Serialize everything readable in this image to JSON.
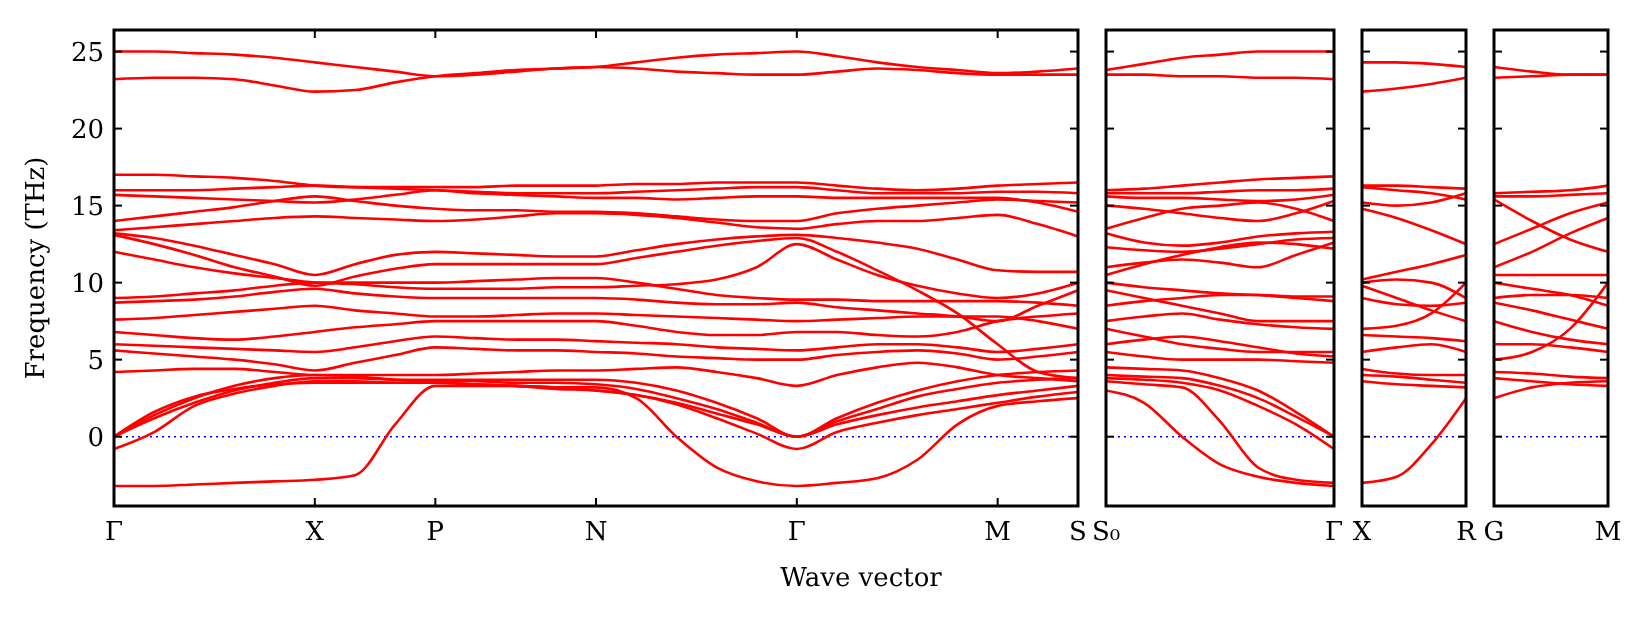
{
  "chart_data": [
    {
      "type": "line",
      "xlabel": "Wave vector",
      "ylabel": "Frequency (THz)",
      "categories": [
        "Γ",
        null,
        null,
        null,
        null,
        "X",
        null,
        null,
        "P",
        null,
        null,
        null,
        "N",
        null,
        null,
        null,
        null,
        "Γ",
        null,
        null,
        null,
        null,
        "M",
        null,
        "S"
      ],
      "ylim": [
        -4.5,
        26.4
      ],
      "yticks": [
        0,
        5,
        10,
        15,
        20,
        25
      ],
      "ref_lines": [
        {
          "axis": "y",
          "value": 0,
          "color": "#0000ff",
          "line_style": "dotted"
        }
      ],
      "line_style": "solid",
      "marker": "none",
      "series": [
        {
          "color": "#ff0000",
          "values": [
            25,
            25,
            24.9,
            24.8,
            24.6,
            24.3,
            24,
            23.7,
            23.4,
            23.5,
            23.7,
            23.9,
            24,
            24.3,
            24.6,
            24.8,
            24.9,
            25,
            24.7,
            24.3,
            24,
            23.8,
            23.6,
            23.7,
            23.9
          ]
        },
        {
          "color": "#ff0000",
          "values": [
            23.2,
            23.3,
            23.3,
            23.2,
            22.8,
            22.4,
            22.5,
            23,
            23.4,
            23.6,
            23.8,
            23.9,
            24,
            23.9,
            23.7,
            23.6,
            23.5,
            23.5,
            23.7,
            23.9,
            23.8,
            23.6,
            23.5,
            23.5,
            23.5
          ]
        },
        {
          "color": "#ff0000",
          "values": [
            17,
            17,
            16.9,
            16.8,
            16.6,
            16.3,
            16.2,
            16.2,
            16.2,
            16.2,
            16.3,
            16.3,
            16.3,
            16.4,
            16.4,
            16.5,
            16.5,
            16.5,
            16.3,
            16.1,
            16,
            16.1,
            16.3,
            16.4,
            16.5
          ]
        },
        {
          "color": "#ff0000",
          "values": [
            16,
            16,
            16,
            16.1,
            16.2,
            16.3,
            16.2,
            16.1,
            16,
            15.9,
            15.8,
            15.8,
            15.8,
            15.9,
            16,
            16.1,
            16.2,
            16.2,
            16,
            15.8,
            15.8,
            15.8,
            15.9,
            15.9,
            15.8
          ]
        },
        {
          "color": "#ff0000",
          "values": [
            15.7,
            15.6,
            15.5,
            15.4,
            15.3,
            15.2,
            15.4,
            15.7,
            16,
            15.8,
            15.7,
            15.6,
            15.5,
            15.5,
            15.4,
            15.5,
            15.6,
            15.6,
            15.5,
            15.5,
            15.5,
            15.5,
            15.5,
            15.2,
            14.6
          ]
        },
        {
          "color": "#ff0000",
          "values": [
            14,
            14.3,
            14.6,
            14.9,
            15.3,
            15.6,
            15.3,
            15,
            14.8,
            14.7,
            14.7,
            14.6,
            14.6,
            14.5,
            14.3,
            14.1,
            14,
            14,
            14.5,
            14.8,
            15,
            15.2,
            15.4,
            15.3,
            15.2
          ]
        },
        {
          "color": "#ff0000",
          "values": [
            13.4,
            13.6,
            13.8,
            14,
            14.2,
            14.3,
            14.2,
            14.1,
            14,
            14.1,
            14.3,
            14.5,
            14.5,
            14.4,
            14.2,
            13.9,
            13.6,
            13.5,
            13.8,
            14,
            14,
            14.2,
            14.4,
            13.8,
            13
          ]
        },
        {
          "color": "#ff0000",
          "values": [
            13.2,
            12.9,
            12.4,
            11.8,
            11.2,
            10.5,
            11.2,
            11.8,
            12,
            11.9,
            11.8,
            11.7,
            11.7,
            12.1,
            12.5,
            12.8,
            13,
            13.1,
            12.9,
            12.6,
            12.2,
            11.5,
            10.8,
            10.7,
            10.7
          ]
        },
        {
          "color": "#ff0000",
          "values": [
            13.1,
            12.5,
            11.8,
            11,
            10.4,
            9.8,
            10.4,
            10.9,
            11.2,
            11.2,
            11.2,
            11.2,
            11.2,
            11.6,
            12,
            12.4,
            12.7,
            12.9,
            12,
            10.8,
            9.5,
            8,
            6,
            4.2,
            3.8
          ]
        },
        {
          "color": "#ff0000",
          "values": [
            12,
            11.5,
            11,
            10.6,
            10.3,
            10,
            9.9,
            9.7,
            9.6,
            9.6,
            9.6,
            9.7,
            9.7,
            9.8,
            9.9,
            10.2,
            11,
            12.5,
            11.5,
            10.5,
            9.8,
            9.3,
            9,
            9.3,
            10
          ]
        },
        {
          "color": "#ff0000",
          "values": [
            9,
            9.1,
            9.3,
            9.5,
            9.8,
            10,
            10,
            10,
            10,
            10.1,
            10.2,
            10.3,
            10.3,
            10,
            9.6,
            9.2,
            9,
            8.9,
            8.9,
            8.8,
            8.8,
            8.8,
            8.8,
            8.7,
            8.5
          ]
        },
        {
          "color": "#ff0000",
          "values": [
            8.7,
            8.8,
            8.9,
            9.1,
            9.4,
            9.6,
            9.3,
            9.1,
            9,
            9,
            9,
            9,
            9,
            8.9,
            8.7,
            8.6,
            8.6,
            8.7,
            8.4,
            8.2,
            8,
            7.8,
            7.5,
            8.5,
            9.5
          ]
        },
        {
          "color": "#ff0000",
          "values": [
            7.6,
            7.7,
            7.9,
            8.1,
            8.3,
            8.5,
            8.2,
            8,
            7.8,
            7.8,
            7.9,
            8,
            8,
            7.9,
            7.8,
            7.7,
            7.6,
            7.5,
            7.6,
            7.7,
            7.8,
            7.8,
            7.8,
            7.5,
            7
          ]
        },
        {
          "color": "#ff0000",
          "values": [
            6.8,
            6.6,
            6.4,
            6.3,
            6.5,
            6.8,
            7.1,
            7.3,
            7.5,
            7.5,
            7.5,
            7.5,
            7.5,
            7.2,
            6.8,
            6.6,
            6.6,
            6.8,
            6.8,
            6.6,
            6.5,
            6.8,
            7.5,
            7.8,
            8
          ]
        },
        {
          "color": "#ff0000",
          "values": [
            6,
            5.9,
            5.8,
            5.7,
            5.6,
            5.5,
            5.8,
            6.2,
            6.5,
            6.4,
            6.3,
            6.3,
            6.2,
            6.1,
            6,
            5.8,
            5.7,
            5.6,
            5.8,
            6,
            6,
            5.8,
            5.5,
            5.7,
            6
          ]
        },
        {
          "color": "#ff0000",
          "values": [
            5.6,
            5.4,
            5.2,
            5,
            4.7,
            4.3,
            4.8,
            5.3,
            5.8,
            5.7,
            5.6,
            5.6,
            5.5,
            5.4,
            5.2,
            5.1,
            5,
            5,
            5.3,
            5.5,
            5.6,
            5.4,
            5,
            5.2,
            5.5
          ]
        },
        {
          "color": "#ff0000",
          "values": [
            4.2,
            4.3,
            4.4,
            4.4,
            4.2,
            4,
            4,
            4,
            4,
            4.1,
            4.2,
            4.3,
            4.3,
            4.4,
            4.5,
            4.2,
            3.8,
            3.3,
            4,
            4.5,
            4.8,
            4.5,
            4,
            3.8,
            3.6
          ]
        },
        {
          "color": "#ff0000",
          "values": [
            0,
            1.2,
            2.2,
            3,
            3.5,
            3.8,
            3.8,
            3.7,
            3.7,
            3.7,
            3.7,
            3.7,
            3.7,
            3.5,
            3,
            2.2,
            1.2,
            0,
            1.2,
            2.2,
            3,
            3.6,
            4,
            4.2,
            4.3
          ]
        },
        {
          "color": "#ff0000",
          "values": [
            0,
            1.4,
            2.5,
            3.3,
            3.8,
            4,
            3.9,
            3.7,
            3.6,
            3.6,
            3.5,
            3.5,
            3.4,
            3.1,
            2.5,
            1.8,
            0.9,
            0,
            1,
            1.8,
            2.6,
            3.1,
            3.5,
            3.7,
            3.8
          ]
        },
        {
          "color": "#ff0000",
          "values": [
            0,
            1.6,
            2.6,
            3.1,
            3.4,
            3.5,
            3.5,
            3.5,
            3.5,
            3.4,
            3.3,
            3.2,
            3,
            2.7,
            2.2,
            1.5,
            0.8,
            0,
            0.8,
            1.4,
            1.9,
            2.3,
            2.7,
            3,
            3.3
          ]
        },
        {
          "color": "#ff0000",
          "values": [
            -0.8,
            0.3,
            2,
            2.8,
            3.3,
            3.6,
            3.6,
            3.5,
            3.5,
            3.4,
            3.3,
            3.1,
            3,
            2.7,
            2.1,
            1.2,
            0.2,
            -0.8,
            0.3,
            0.9,
            1.4,
            1.8,
            2.2,
            2.6,
            2.9
          ]
        },
        {
          "color": "#ff0000",
          "values": [
            -3.2,
            -3.2,
            -3.1,
            -3,
            -2.9,
            -2.8,
            -2.5,
            0.8,
            3.3,
            3.3,
            3.3,
            3.2,
            3.2,
            2.5,
            0,
            -2,
            -2.9,
            -3.2,
            -3,
            -2.7,
            -1.5,
            0.8,
            2,
            2.3,
            2.5
          ]
        }
      ]
    },
    {
      "type": "line",
      "categories": [
        "S₀",
        null,
        null,
        null,
        null,
        null,
        "Γ"
      ],
      "ylim": [
        -4.5,
        26.4
      ],
      "yticks": [
        0,
        5,
        10,
        15,
        20,
        25
      ],
      "tick_labels": "x",
      "ref_lines": [
        {
          "axis": "y",
          "value": 0,
          "color": "#0000ff",
          "line_style": "dotted"
        }
      ],
      "line_style": "solid",
      "marker": "none",
      "series": [
        {
          "color": "#ff0000",
          "values": [
            23.8,
            24.2,
            24.6,
            24.8,
            25,
            25,
            25
          ]
        },
        {
          "color": "#ff0000",
          "values": [
            23.5,
            23.5,
            23.4,
            23.4,
            23.3,
            23.3,
            23.2
          ]
        },
        {
          "color": "#ff0000",
          "values": [
            16,
            16.1,
            16.3,
            16.5,
            16.7,
            16.8,
            16.9
          ]
        },
        {
          "color": "#ff0000",
          "values": [
            15.8,
            15.8,
            15.8,
            15.9,
            16,
            16,
            16.1
          ]
        },
        {
          "color": "#ff0000",
          "values": [
            15.6,
            15.5,
            15.5,
            15.4,
            15.3,
            15.4,
            15.7
          ]
        },
        {
          "color": "#ff0000",
          "values": [
            15,
            14.8,
            14.5,
            14.2,
            14,
            14.5,
            15.3
          ]
        },
        {
          "color": "#ff0000",
          "values": [
            13.5,
            14.2,
            14.8,
            15,
            15.2,
            14.8,
            14
          ]
        },
        {
          "color": "#ff0000",
          "values": [
            13.2,
            12.6,
            12.4,
            12.6,
            13,
            13.2,
            13.3
          ]
        },
        {
          "color": "#ff0000",
          "values": [
            12.3,
            12.1,
            12,
            12.2,
            12.5,
            12.8,
            12.9
          ]
        },
        {
          "color": "#ff0000",
          "values": [
            11,
            11.3,
            11.5,
            11.3,
            11,
            11.8,
            12.6
          ]
        },
        {
          "color": "#ff0000",
          "values": [
            10.5,
            11.2,
            11.8,
            12.3,
            12.6,
            12.5,
            12.2
          ]
        },
        {
          "color": "#ff0000",
          "values": [
            10,
            9.7,
            9.5,
            9.3,
            9.2,
            9,
            8.8
          ]
        },
        {
          "color": "#ff0000",
          "values": [
            9.5,
            9,
            8.5,
            8,
            7.5,
            7.5,
            7.5
          ]
        },
        {
          "color": "#ff0000",
          "values": [
            8.5,
            8.8,
            9,
            9.2,
            9.2,
            9.1,
            9.1
          ]
        },
        {
          "color": "#ff0000",
          "values": [
            7.5,
            7.8,
            8,
            7.6,
            7.3,
            7.1,
            7
          ]
        },
        {
          "color": "#ff0000",
          "values": [
            7,
            6.5,
            6,
            5.7,
            5.5,
            5.5,
            5.5
          ]
        },
        {
          "color": "#ff0000",
          "values": [
            6,
            6.3,
            6.5,
            6.2,
            5.8,
            5.4,
            5.2
          ]
        },
        {
          "color": "#ff0000",
          "values": [
            5.5,
            5.2,
            5,
            5,
            5,
            4.9,
            4.8
          ]
        },
        {
          "color": "#ff0000",
          "values": [
            4.5,
            4.4,
            4.3,
            3.8,
            3,
            1.6,
            0
          ]
        },
        {
          "color": "#ff0000",
          "values": [
            4,
            3.9,
            3.8,
            3.3,
            2.5,
            1.3,
            0
          ]
        },
        {
          "color": "#ff0000",
          "values": [
            3.8,
            3.7,
            3.5,
            3,
            2,
            0.8,
            -0.8
          ]
        },
        {
          "color": "#ff0000",
          "values": [
            3,
            2.2,
            0,
            -1.8,
            -2.6,
            -3,
            -3.2
          ]
        },
        {
          "color": "#ff0000",
          "values": [
            3.6,
            3.4,
            3.2,
            1,
            -2,
            -2.8,
            -3
          ]
        }
      ]
    },
    {
      "type": "line",
      "categories": [
        "X",
        null,
        null,
        "R"
      ],
      "ylim": [
        -4.5,
        26.4
      ],
      "yticks": [
        0,
        5,
        10,
        15,
        20,
        25
      ],
      "tick_labels": "x",
      "ref_lines": [
        {
          "axis": "y",
          "value": 0,
          "color": "#0000ff",
          "line_style": "dotted"
        }
      ],
      "line_style": "solid",
      "marker": "none",
      "series": [
        {
          "color": "#ff0000",
          "values": [
            24.3,
            24.3,
            24.2,
            24
          ]
        },
        {
          "color": "#ff0000",
          "values": [
            22.4,
            22.6,
            22.9,
            23.3
          ]
        },
        {
          "color": "#ff0000",
          "values": [
            16.3,
            16.3,
            16.2,
            16.1
          ]
        },
        {
          "color": "#ff0000",
          "values": [
            16.2,
            16,
            15.8,
            15.4
          ]
        },
        {
          "color": "#ff0000",
          "values": [
            15.2,
            15,
            15.2,
            15.8
          ]
        },
        {
          "color": "#ff0000",
          "values": [
            14.8,
            14.2,
            13.4,
            12.5
          ]
        },
        {
          "color": "#ff0000",
          "values": [
            10.2,
            10.7,
            11.2,
            11.8
          ]
        },
        {
          "color": "#ff0000",
          "values": [
            10,
            10.2,
            10,
            9
          ]
        },
        {
          "color": "#ff0000",
          "values": [
            9.8,
            9,
            8.2,
            7.5
          ]
        },
        {
          "color": "#ff0000",
          "values": [
            9,
            8.6,
            8.5,
            8.7
          ]
        },
        {
          "color": "#ff0000",
          "values": [
            7,
            7.2,
            8,
            10
          ]
        },
        {
          "color": "#ff0000",
          "values": [
            6.6,
            6.5,
            6.4,
            6.2
          ]
        },
        {
          "color": "#ff0000",
          "values": [
            5.5,
            5.8,
            6,
            5.5
          ]
        },
        {
          "color": "#ff0000",
          "values": [
            4.4,
            4.1,
            4,
            4
          ]
        },
        {
          "color": "#ff0000",
          "values": [
            4,
            3.9,
            3.7,
            3.5
          ]
        },
        {
          "color": "#ff0000",
          "values": [
            3.6,
            3.4,
            3.3,
            3.2
          ]
        },
        {
          "color": "#ff0000",
          "values": [
            -3,
            -2.6,
            -0.5,
            2.5
          ]
        }
      ]
    },
    {
      "type": "line",
      "categories": [
        "G",
        null,
        null,
        "M"
      ],
      "ylim": [
        -4.5,
        26.4
      ],
      "yticks": [
        0,
        5,
        10,
        15,
        20,
        25
      ],
      "tick_labels": "x",
      "ref_lines": [
        {
          "axis": "y",
          "value": 0,
          "color": "#0000ff",
          "line_style": "dotted"
        }
      ],
      "line_style": "solid",
      "marker": "none",
      "series": [
        {
          "color": "#ff0000",
          "values": [
            24,
            23.7,
            23.5,
            23.5
          ]
        },
        {
          "color": "#ff0000",
          "values": [
            23.3,
            23.4,
            23.5,
            23.5
          ]
        },
        {
          "color": "#ff0000",
          "values": [
            15.8,
            15.9,
            16,
            16.3
          ]
        },
        {
          "color": "#ff0000",
          "values": [
            15.6,
            15.6,
            15.7,
            15.8
          ]
        },
        {
          "color": "#ff0000",
          "values": [
            15.4,
            14,
            12.8,
            12
          ]
        },
        {
          "color": "#ff0000",
          "values": [
            12.5,
            13.5,
            14.5,
            15.2
          ]
        },
        {
          "color": "#ff0000",
          "values": [
            11,
            12,
            13.2,
            14.2
          ]
        },
        {
          "color": "#ff0000",
          "values": [
            10.5,
            10.5,
            10.5,
            10.5
          ]
        },
        {
          "color": "#ff0000",
          "values": [
            10,
            9.6,
            9.2,
            8.5
          ]
        },
        {
          "color": "#ff0000",
          "values": [
            9,
            9.2,
            9.2,
            9
          ]
        },
        {
          "color": "#ff0000",
          "values": [
            8.7,
            8.2,
            7.6,
            7
          ]
        },
        {
          "color": "#ff0000",
          "values": [
            7.5,
            6.8,
            6.3,
            6
          ]
        },
        {
          "color": "#ff0000",
          "values": [
            6,
            6,
            5.8,
            5.5
          ]
        },
        {
          "color": "#ff0000",
          "values": [
            5,
            5.5,
            7,
            10
          ]
        },
        {
          "color": "#ff0000",
          "values": [
            4.2,
            4.1,
            3.9,
            3.8
          ]
        },
        {
          "color": "#ff0000",
          "values": [
            3.8,
            3.6,
            3.4,
            3.3
          ]
        },
        {
          "color": "#ff0000",
          "values": [
            2.5,
            3.2,
            3.5,
            3.6
          ]
        }
      ]
    }
  ]
}
